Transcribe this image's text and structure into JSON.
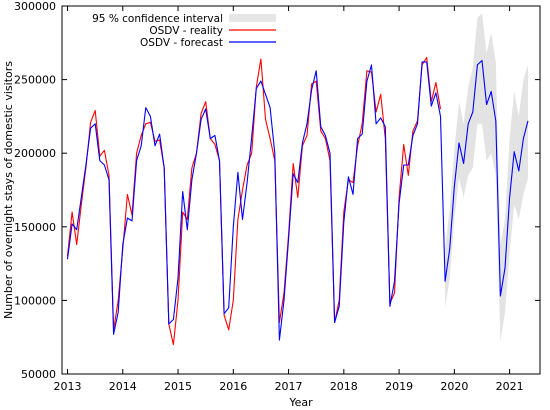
{
  "chart_data": {
    "type": "line",
    "xlabel": "Year",
    "ylabel": "Number of overnight stays of domestic visitors",
    "xlim": [
      2012.9,
      2021.55
    ],
    "ylim": [
      50000,
      300000
    ],
    "xticks": [
      2013,
      2014,
      2015,
      2016,
      2017,
      2018,
      2019,
      2020,
      2021
    ],
    "xtick_labels": [
      "2013",
      "2014",
      "2015",
      "2016",
      "2017",
      "2018",
      "2019",
      "2020",
      "2021"
    ],
    "yticks": [
      50000,
      100000,
      150000,
      200000,
      250000,
      300000
    ],
    "ytick_labels": [
      "50000",
      "100000",
      "150000",
      "200000",
      "250000",
      "300000"
    ],
    "grid": false,
    "legend_position": "top-left",
    "legend": [
      {
        "key": "ci",
        "label": "95 % confidence interval",
        "color": "#e6e6e6"
      },
      {
        "key": "reality",
        "label": "OSDV - reality",
        "color": "#ff0000"
      },
      {
        "key": "forecast",
        "label": "OSDV - forecast",
        "color": "#0000ff"
      }
    ],
    "months_start": "2013-01",
    "series": [
      {
        "key": "reality",
        "name": "OSDV - reality",
        "color": "#ff0000",
        "values": [
          130000,
          160000,
          138000,
          165000,
          190000,
          221000,
          229000,
          198000,
          202000,
          185000,
          80000,
          100000,
          135000,
          172000,
          158000,
          200000,
          212000,
          220000,
          221000,
          208000,
          209000,
          190000,
          84000,
          70000,
          100000,
          160000,
          155000,
          190000,
          200000,
          227000,
          235000,
          210000,
          206000,
          195000,
          90000,
          80000,
          100000,
          155000,
          175000,
          192000,
          200000,
          245000,
          264000,
          223000,
          210000,
          195000,
          85000,
          105000,
          145000,
          193000,
          170000,
          205000,
          212000,
          247000,
          249000,
          215000,
          210000,
          195000,
          85000,
          100000,
          160000,
          182000,
          180000,
          205000,
          220000,
          256000,
          255000,
          228000,
          240000,
          210000,
          98000,
          105000,
          170000,
          206000,
          185000,
          215000,
          222000,
          260000,
          265000,
          235000,
          248000,
          230000
        ]
      },
      {
        "key": "forecast",
        "name": "OSDV - forecast",
        "color": "#0000ff",
        "values": [
          128000,
          152000,
          148000,
          170000,
          192000,
          217000,
          220000,
          195000,
          192000,
          182000,
          77000,
          92000,
          138000,
          156000,
          154000,
          195000,
          205000,
          231000,
          225000,
          205000,
          213000,
          190000,
          84000,
          87000,
          115000,
          174000,
          148000,
          182000,
          200000,
          223000,
          230000,
          210000,
          212000,
          195000,
          91000,
          95000,
          150000,
          187000,
          155000,
          180000,
          211000,
          244000,
          249000,
          240000,
          231000,
          200000,
          73000,
          100000,
          142000,
          186000,
          180000,
          207000,
          220000,
          243000,
          256000,
          218000,
          212000,
          200000,
          85000,
          96000,
          153000,
          184000,
          172000,
          210000,
          213000,
          249000,
          260000,
          220000,
          224000,
          218000,
          96000,
          113000,
          166000,
          192000,
          192000,
          212000,
          220000,
          262000,
          262000,
          232000,
          241000,
          225000,
          113000,
          135000,
          177000,
          207000,
          193000,
          220000,
          228000,
          260000,
          263000,
          233000,
          242000,
          222000,
          103000,
          122000,
          170000,
          201000,
          188000,
          210000,
          222000
        ]
      }
    ],
    "confidence_interval": {
      "start": "2019-11",
      "lower": [
        95000,
        115000,
        155000,
        183000,
        170000,
        185000,
        190000,
        220000,
        220000,
        195000,
        200000,
        185000,
        72000,
        92000,
        132000,
        165000,
        155000,
        172000,
        183000
      ],
      "upper": [
        135000,
        162000,
        202000,
        235000,
        220000,
        245000,
        258000,
        292000,
        295000,
        268000,
        282000,
        262000,
        138000,
        155000,
        210000,
        242000,
        225000,
        250000,
        260000
      ]
    }
  }
}
